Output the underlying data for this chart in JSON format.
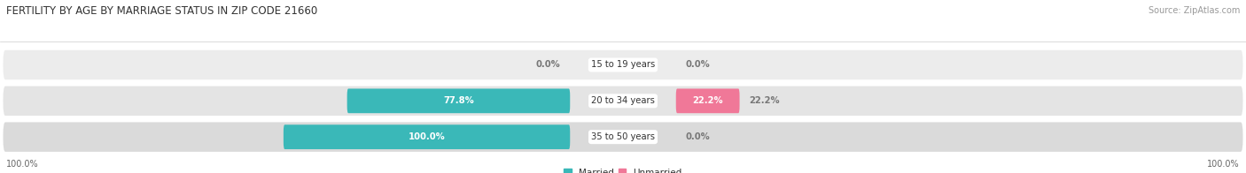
{
  "title": "FERTILITY BY AGE BY MARRIAGE STATUS IN ZIP CODE 21660",
  "source": "Source: ZipAtlas.com",
  "categories": [
    "15 to 19 years",
    "20 to 34 years",
    "35 to 50 years"
  ],
  "married_values": [
    0.0,
    77.8,
    100.0
  ],
  "unmarried_values": [
    0.0,
    22.2,
    0.0
  ],
  "married_color": "#3ab8b8",
  "unmarried_color": "#f07898",
  "row_bg_colors": [
    "#ececec",
    "#e4e4e4",
    "#dadada"
  ],
  "title_fontsize": 8.5,
  "label_fontsize": 7.2,
  "tick_fontsize": 7,
  "source_fontsize": 7,
  "legend_fontsize": 7.5,
  "background_color": "#ffffff",
  "left_label": "100.0%",
  "right_label": "100.0%",
  "center_label_color": "#333333",
  "value_label_color_inside": "#ffffff",
  "value_label_color_outside": "#777777"
}
